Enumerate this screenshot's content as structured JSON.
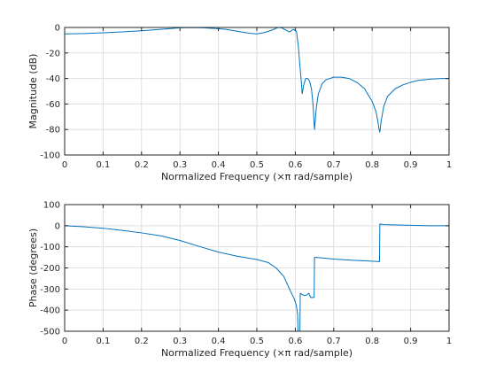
{
  "colors": {
    "series": "#0072bd",
    "axes": "#262626",
    "grid": "#dfdfdf",
    "background": "#ffffff"
  },
  "chart_data": [
    {
      "type": "line",
      "xlabel": "Normalized Frequency  (×π rad/sample)",
      "ylabel": "Magnitude (dB)",
      "xlim": [
        0,
        1
      ],
      "ylim": [
        -100,
        0
      ],
      "xticks": [
        0,
        0.1,
        0.2,
        0.3,
        0.4,
        0.5,
        0.6,
        0.7,
        0.8,
        0.9,
        1
      ],
      "xtick_labels": [
        "0",
        "0.1",
        "0.2",
        "0.3",
        "0.4",
        "0.5",
        "0.6",
        "0.7",
        "0.8",
        "0.9",
        "1"
      ],
      "yticks": [
        -100,
        -80,
        -60,
        -40,
        -20,
        0
      ],
      "ytick_labels": [
        "-100",
        "-80",
        "-60",
        "-40",
        "-20",
        "0"
      ],
      "grid": true,
      "series": [
        {
          "x": [
            0,
            0.05,
            0.1,
            0.15,
            0.2,
            0.25,
            0.28,
            0.3,
            0.33,
            0.36,
            0.39,
            0.42,
            0.45,
            0.48,
            0.5,
            0.52,
            0.54,
            0.555,
            0.565,
            0.575,
            0.585,
            0.595,
            0.603,
            0.608,
            0.612,
            0.615,
            0.618,
            0.622,
            0.627,
            0.632,
            0.637,
            0.642,
            0.646,
            0.65,
            0.655,
            0.66,
            0.67,
            0.68,
            0.7,
            0.72,
            0.74,
            0.76,
            0.78,
            0.8,
            0.81,
            0.815,
            0.818,
            0.82,
            0.823,
            0.83,
            0.84,
            0.86,
            0.88,
            0.9,
            0.92,
            0.95,
            0.98,
            1
          ],
          "y": [
            -5,
            -4.8,
            -4.2,
            -3.5,
            -2.6,
            -1.5,
            -0.8,
            -0.3,
            -0.1,
            -0.3,
            -0.8,
            -1.5,
            -3.0,
            -4.5,
            -5.0,
            -4.0,
            -2.0,
            0,
            -0.3,
            -2.0,
            -3.5,
            -1.5,
            -3,
            -15,
            -30,
            -40,
            -52,
            -45,
            -40,
            -40,
            -42,
            -48,
            -60,
            -80,
            -62,
            -52,
            -44,
            -41,
            -39,
            -39,
            -40,
            -43,
            -48,
            -58,
            -66,
            -74,
            -80,
            -82,
            -74,
            -62,
            -54,
            -48,
            -45,
            -43,
            -41.5,
            -40.5,
            -40,
            -40
          ]
        }
      ]
    },
    {
      "type": "line",
      "xlabel": "Normalized Frequency  (×π rad/sample)",
      "ylabel": "Phase (degrees)",
      "xlim": [
        0,
        1
      ],
      "ylim": [
        -500,
        100
      ],
      "xticks": [
        0,
        0.1,
        0.2,
        0.3,
        0.4,
        0.5,
        0.6,
        0.7,
        0.8,
        0.9,
        1
      ],
      "xtick_labels": [
        "0",
        "0.1",
        "0.2",
        "0.3",
        "0.4",
        "0.5",
        "0.6",
        "0.7",
        "0.8",
        "0.9",
        "1"
      ],
      "yticks": [
        -500,
        -400,
        -300,
        -200,
        -100,
        0,
        100
      ],
      "ytick_labels": [
        "-500",
        "-400",
        "-300",
        "-200",
        "-100",
        "0",
        "100"
      ],
      "grid": true,
      "series": [
        {
          "x": [
            0,
            0.05,
            0.1,
            0.15,
            0.2,
            0.25,
            0.3,
            0.35,
            0.4,
            0.45,
            0.5,
            0.53,
            0.55,
            0.57,
            0.58,
            0.59,
            0.597,
            0.603,
            0.606,
            0.607,
            0.612,
            0.613,
            0.617,
            0.622,
            0.628,
            0.635,
            0.64,
            0.645,
            0.649,
            0.65,
            0.655,
            0.7,
            0.75,
            0.8,
            0.818,
            0.819,
            0.82,
            0.83,
            0.9,
            0.95,
            1
          ],
          "y": [
            0,
            -5,
            -12,
            -22,
            -34,
            -48,
            -70,
            -98,
            -125,
            -145,
            -160,
            -175,
            -200,
            -240,
            -280,
            -320,
            -345,
            -380,
            -420,
            -500,
            -500,
            -320,
            -325,
            -330,
            -330,
            -320,
            -340,
            -340,
            -340,
            -150,
            -150,
            -158,
            -164,
            -168,
            -170,
            -170,
            8,
            5,
            2,
            0,
            0
          ]
        }
      ]
    }
  ]
}
